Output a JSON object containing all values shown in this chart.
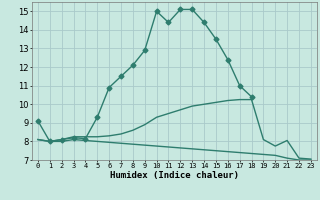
{
  "xlabel": "Humidex (Indice chaleur)",
  "ylabel": "",
  "bg_color": "#c8e8e0",
  "line_color": "#2e7d6e",
  "grid_color": "#aacaca",
  "xlim": [
    -0.5,
    23.5
  ],
  "ylim": [
    7,
    15.5
  ],
  "yticks": [
    7,
    8,
    9,
    10,
    11,
    12,
    13,
    14,
    15
  ],
  "xtick_positions": [
    0,
    1,
    2,
    3,
    4,
    5,
    6,
    7,
    8,
    9,
    10,
    11,
    12,
    13,
    14,
    15,
    16,
    17,
    18,
    19,
    20,
    21,
    22,
    23
  ],
  "xtick_labels": [
    "0",
    "1",
    "2",
    "3",
    "4",
    "5",
    "6",
    "7",
    "8",
    "9",
    "10",
    "11",
    "12",
    "13",
    "14",
    "15",
    "16",
    "17",
    "18",
    "19",
    "20",
    "21",
    "22",
    "23"
  ],
  "line1_x": [
    0,
    1,
    2,
    3,
    4,
    5,
    6,
    7,
    8,
    9,
    10,
    11,
    12,
    13,
    14,
    15,
    16,
    17,
    18
  ],
  "line1_y": [
    9.1,
    8.0,
    8.1,
    8.2,
    8.15,
    9.3,
    10.9,
    11.5,
    12.1,
    12.9,
    15.0,
    14.4,
    15.1,
    15.1,
    14.4,
    13.5,
    12.4,
    11.0,
    10.4
  ],
  "line2_x": [
    0,
    1,
    2,
    3,
    4,
    5,
    6,
    7,
    8,
    9,
    10,
    11,
    12,
    13,
    14,
    15,
    16,
    17,
    18,
    19,
    20,
    21,
    22,
    23
  ],
  "line2_y": [
    8.1,
    8.0,
    8.1,
    8.25,
    8.25,
    8.25,
    8.3,
    8.4,
    8.6,
    8.9,
    9.3,
    9.5,
    9.7,
    9.9,
    10.0,
    10.1,
    10.2,
    10.25,
    10.25,
    8.1,
    7.75,
    8.05,
    7.1,
    7.05
  ],
  "line3_x": [
    0,
    1,
    2,
    3,
    4,
    5,
    6,
    7,
    8,
    9,
    10,
    11,
    12,
    13,
    14,
    15,
    16,
    17,
    18,
    19,
    20,
    21,
    22,
    23
  ],
  "line3_y": [
    8.1,
    8.0,
    8.0,
    8.1,
    8.05,
    8.0,
    7.95,
    7.9,
    7.85,
    7.8,
    7.75,
    7.7,
    7.65,
    7.6,
    7.55,
    7.5,
    7.45,
    7.4,
    7.35,
    7.3,
    7.25,
    7.1,
    7.0,
    7.0
  ],
  "marker": "D",
  "markersize": 2.5,
  "linewidth": 1.0
}
